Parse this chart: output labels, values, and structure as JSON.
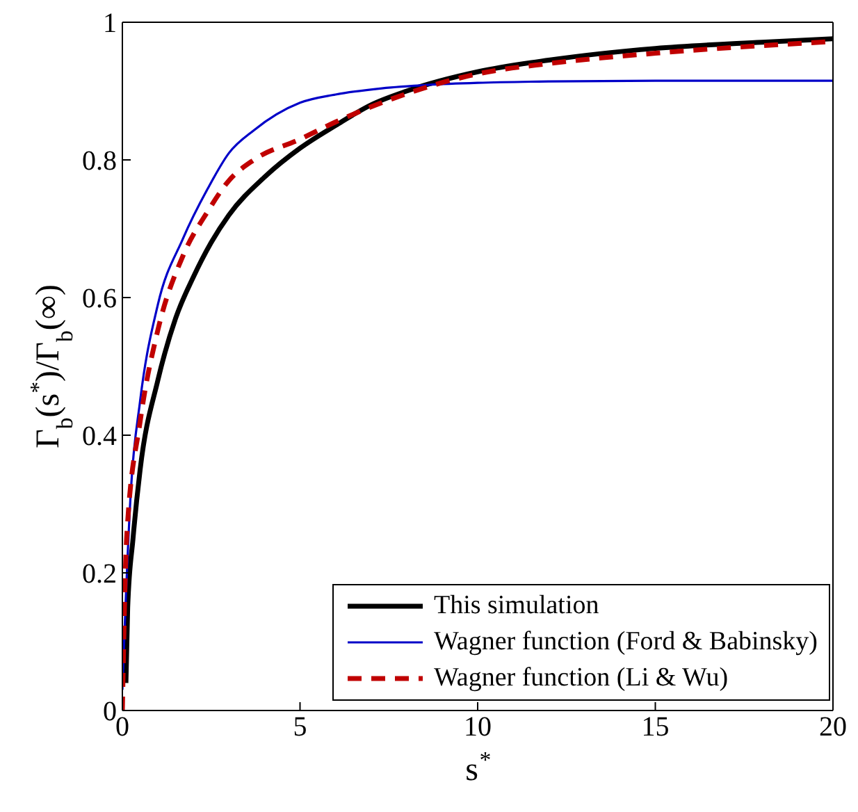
{
  "chart_data": {
    "type": "line",
    "xlabel": "s$^{*}$",
    "ylabel": "Γ$_{b}$(s$^{*}$)/Γ$_{b}$(∞)",
    "xlim": [
      0,
      20
    ],
    "ylim": [
      0,
      1
    ],
    "xticks": [
      0,
      5,
      10,
      15,
      20
    ],
    "yticks": [
      0,
      0.2,
      0.4,
      0.6,
      0.8,
      1
    ],
    "grid": false,
    "legend": "bottom right",
    "marker": "none",
    "series": [
      {
        "name": "This simulation",
        "color": "#000000",
        "line_style": "solid",
        "x": [
          0.1,
          0.15,
          0.3,
          0.5,
          1,
          1.5,
          2,
          2.5,
          3,
          4,
          5,
          6,
          7,
          8,
          10,
          12,
          15,
          18,
          20
        ],
        "values": [
          0.04,
          0.15,
          0.25,
          0.35,
          0.48,
          0.57,
          0.63,
          0.68,
          0.72,
          0.775,
          0.817,
          0.85,
          0.88,
          0.9,
          0.928,
          0.945,
          0.962,
          0.971,
          0.976
        ]
      },
      {
        "name": "Wagner function (Ford & Babinsky)",
        "color": "#0000c8",
        "line_style": "solid",
        "x": [
          0,
          0.05,
          0.24,
          0.5,
          1,
          1.7,
          2.4,
          3,
          3.7,
          5,
          6,
          7.3,
          8.6,
          10,
          12,
          15,
          20
        ],
        "values": [
          0.03,
          0.1,
          0.32,
          0.45,
          0.59,
          0.685,
          0.758,
          0.81,
          0.843,
          0.883,
          0.895,
          0.904,
          0.909,
          0.912,
          0.914,
          0.915,
          0.915
        ]
      },
      {
        "name": "Wagner function (Li & Wu)",
        "color": "#c00000",
        "line_style": "dashed",
        "x": [
          0,
          0.12,
          0.5,
          1,
          1.7,
          2.4,
          3,
          3.7,
          5,
          6,
          7.66,
          10,
          12,
          15,
          18,
          20
        ],
        "values": [
          0,
          0.25,
          0.42,
          0.553,
          0.66,
          0.725,
          0.77,
          0.8,
          0.83,
          0.855,
          0.89,
          0.925,
          0.94,
          0.955,
          0.966,
          0.972
        ]
      }
    ]
  }
}
